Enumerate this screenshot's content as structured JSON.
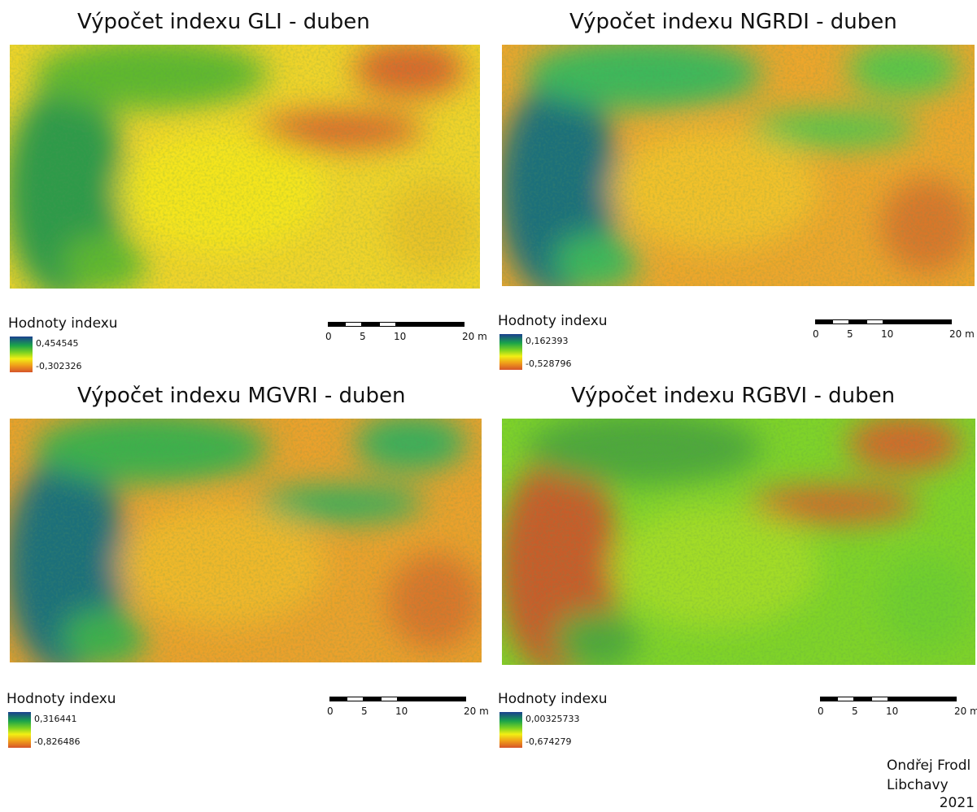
{
  "panels": [
    {
      "title": "Výpočet indexu GLI - duben",
      "legend_title": "Hodnoty indexu",
      "legend_max": "0,454545",
      "legend_min": "-0,302326",
      "scale_labels": [
        "0",
        "5",
        "10",
        "20 m"
      ]
    },
    {
      "title": "Výpočet indexu NGRDI - duben",
      "legend_title": "Hodnoty indexu",
      "legend_max": "0,162393",
      "legend_min": "-0,528796",
      "scale_labels": [
        "0",
        "5",
        "10",
        "20 m"
      ]
    },
    {
      "title": "Výpočet indexu MGVRI - duben",
      "legend_title": "Hodnoty indexu",
      "legend_max": "0,316441",
      "legend_min": "-0,826486",
      "scale_labels": [
        "0",
        "5",
        "10",
        "20 m"
      ]
    },
    {
      "title": "Výpočet indexu RGBVI - duben",
      "legend_title": "Hodnoty indexu",
      "legend_max": "0,00325733",
      "legend_min": "-0,674279",
      "scale_labels": [
        "0",
        "5",
        "10",
        "20 m"
      ]
    }
  ],
  "author": {
    "name": "Ondřej Frodl",
    "place": "Libchavy",
    "year": "2021"
  }
}
